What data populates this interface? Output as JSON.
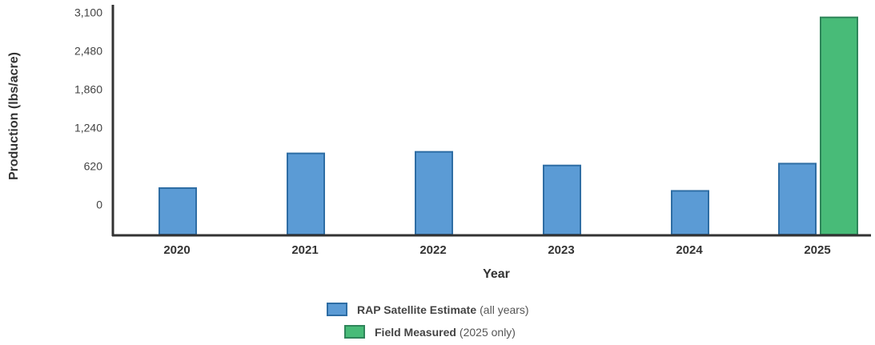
{
  "chart_data": {
    "type": "bar",
    "categories": [
      "2020",
      "2021",
      "2022",
      "2023",
      "2024",
      "2025"
    ],
    "series": [
      {
        "name": "RAP Satellite Estimate",
        "values": [
          265,
          825,
          850,
          630,
          220,
          660
        ],
        "color": "#5b9bd5",
        "border_color": "#2e6da4"
      },
      {
        "name": "Field Measured",
        "values": [
          null,
          null,
          null,
          null,
          null,
          3020
        ],
        "color": "#48bb78",
        "border_color": "#2f855a"
      }
    ],
    "xlabel": "Year",
    "ylabel": "Production (lbs/acre)",
    "yticks": [
      "0",
      "620",
      "1,240",
      "1,860",
      "2,480",
      "3,100"
    ],
    "ytick_values": [
      0,
      620,
      1240,
      1860,
      2480,
      3100
    ],
    "ylim": [
      -500,
      3100
    ],
    "grid": false,
    "legend_position": "bottom-center"
  },
  "legend": {
    "items": [
      {
        "label": "RAP Satellite Estimate",
        "note": "(all years)",
        "color": "#5b9bd5",
        "border": "#2e6da4"
      },
      {
        "label": "Field Measured",
        "note": "(2025 only)",
        "color": "#48bb78",
        "border": "#2f855a"
      }
    ]
  }
}
